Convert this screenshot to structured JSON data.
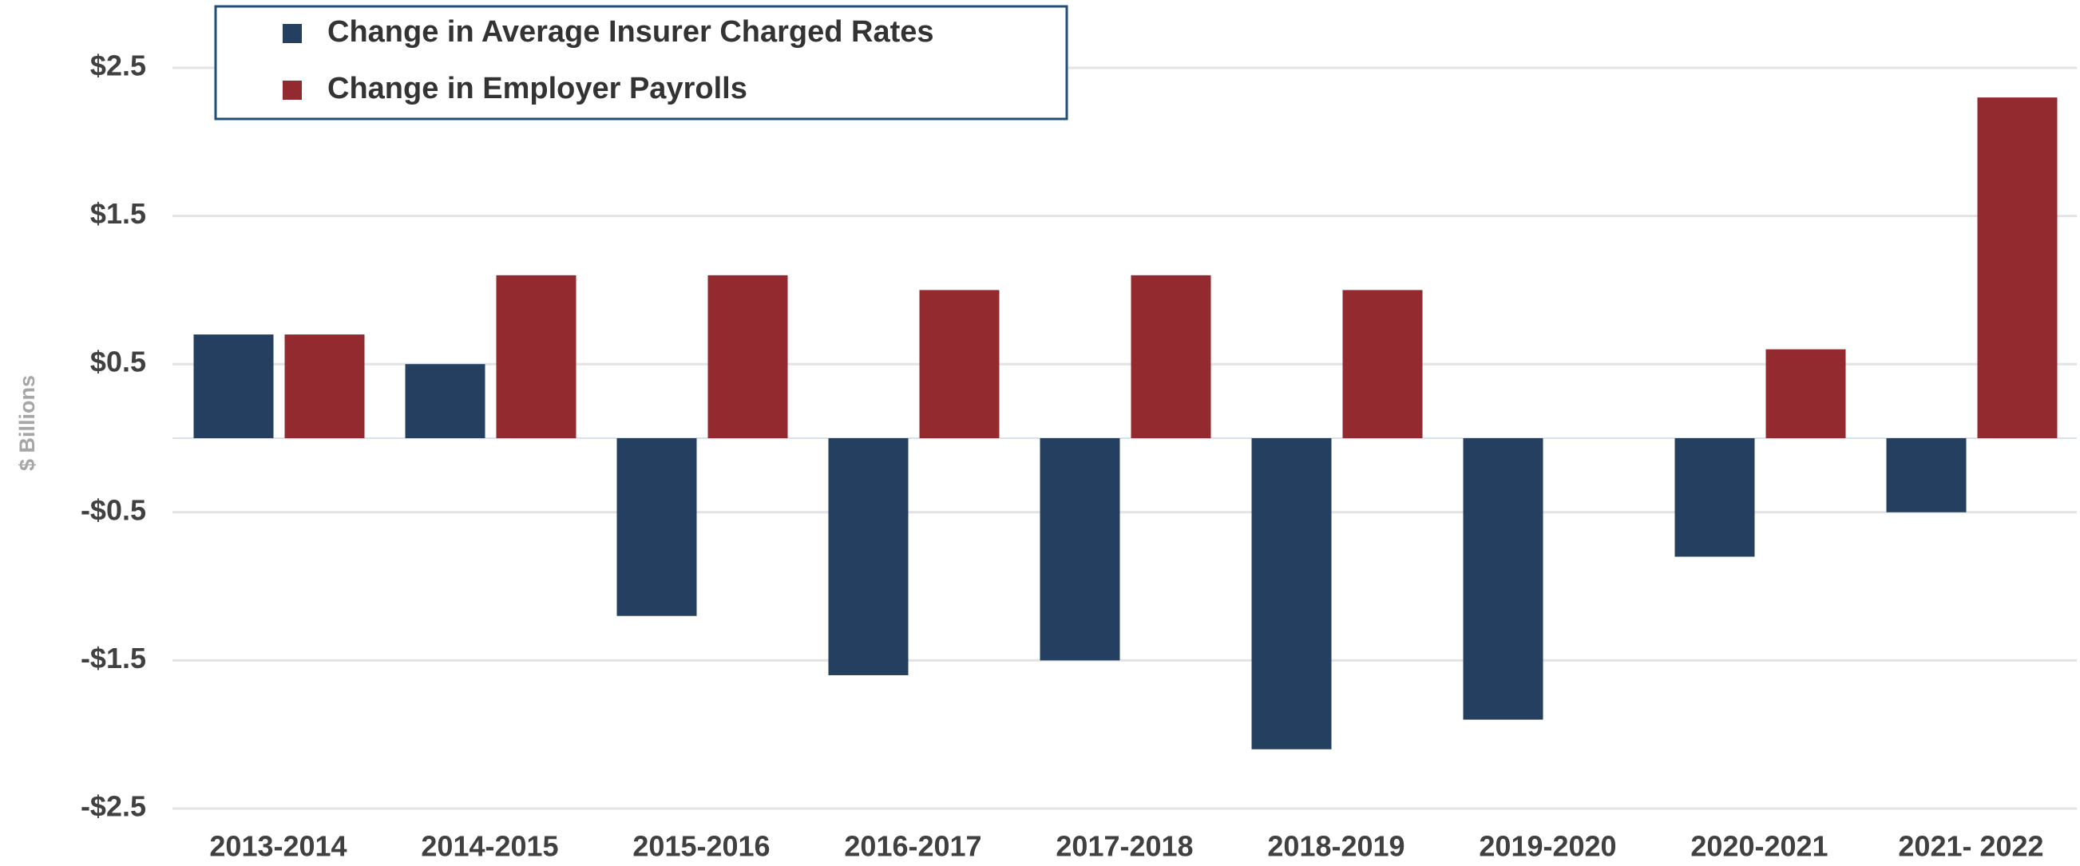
{
  "chart_data": {
    "type": "bar",
    "y_label": "$ Billions",
    "categories": [
      "2013-2014",
      "2014-2015",
      "2015-2016",
      "2016-2017",
      "2017-2018",
      "2018-2019",
      "2019-2020",
      "2020-2021",
      "2021- 2022"
    ],
    "series": [
      {
        "name": "Change in Average Insurer Charged Rates",
        "color": "#243f60",
        "values": [
          0.7,
          0.5,
          -1.2,
          -1.6,
          -1.5,
          -2.1,
          -1.9,
          -0.8,
          -0.5
        ]
      },
      {
        "name": "Change in Employer Payrolls",
        "color": "#922a2f",
        "values": [
          0.7,
          1.1,
          1.1,
          1.0,
          1.1,
          1.0,
          null,
          0.6,
          2.3
        ]
      }
    ],
    "ylim": [
      -2.5,
      2.5
    ],
    "yticks": [
      {
        "value": 2.5,
        "label": "$2.5"
      },
      {
        "value": 1.5,
        "label": "$1.5"
      },
      {
        "value": 0.5,
        "label": "$0.5"
      },
      {
        "value": -0.5,
        "label": "-$0.5"
      },
      {
        "value": -1.5,
        "label": "-$1.5"
      },
      {
        "value": -2.5,
        "label": "-$2.5"
      }
    ],
    "grid": true,
    "legend_position": "top-left"
  }
}
